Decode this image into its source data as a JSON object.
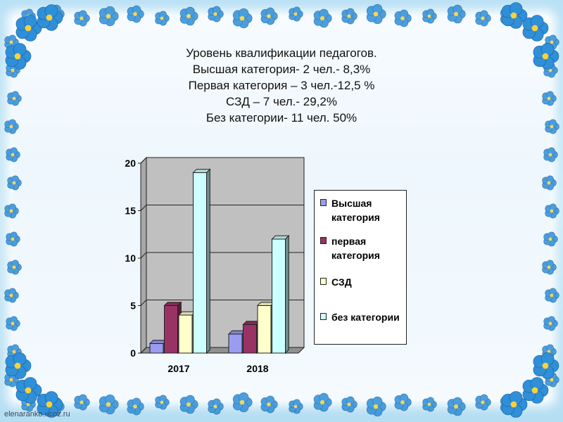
{
  "slide": {
    "title_lines": [
      "Уровень квалификации педагогов.",
      "Высшая категория- 2 чел.- 8,3%",
      "Первая категория – 3 чел.-12,5 %",
      "СЗД – 7 чел.- 29,2%",
      "Без категории- 11 чел. 50%"
    ],
    "watermark": "elenaranko.ucoz.ru"
  },
  "colors": {
    "frame_flower": "#2f8fd8",
    "flower_center": "#f7d23a",
    "series": [
      "#9a9cf0",
      "#993366",
      "#ffffcc",
      "#ccffff"
    ]
  },
  "chart_data": {
    "type": "bar",
    "categories": [
      "2017",
      "2018"
    ],
    "series": [
      {
        "name": "Высшая категория",
        "values": [
          1,
          2
        ]
      },
      {
        "name": "первая категория",
        "values": [
          5,
          3
        ]
      },
      {
        "name": "СЗД",
        "values": [
          4,
          5
        ]
      },
      {
        "name": "без категории",
        "values": [
          19,
          12
        ]
      }
    ],
    "ylim": [
      0,
      20
    ],
    "yticks": [
      "0",
      "5",
      "10",
      "15",
      "20"
    ],
    "grid": true,
    "legend_position": "right"
  }
}
